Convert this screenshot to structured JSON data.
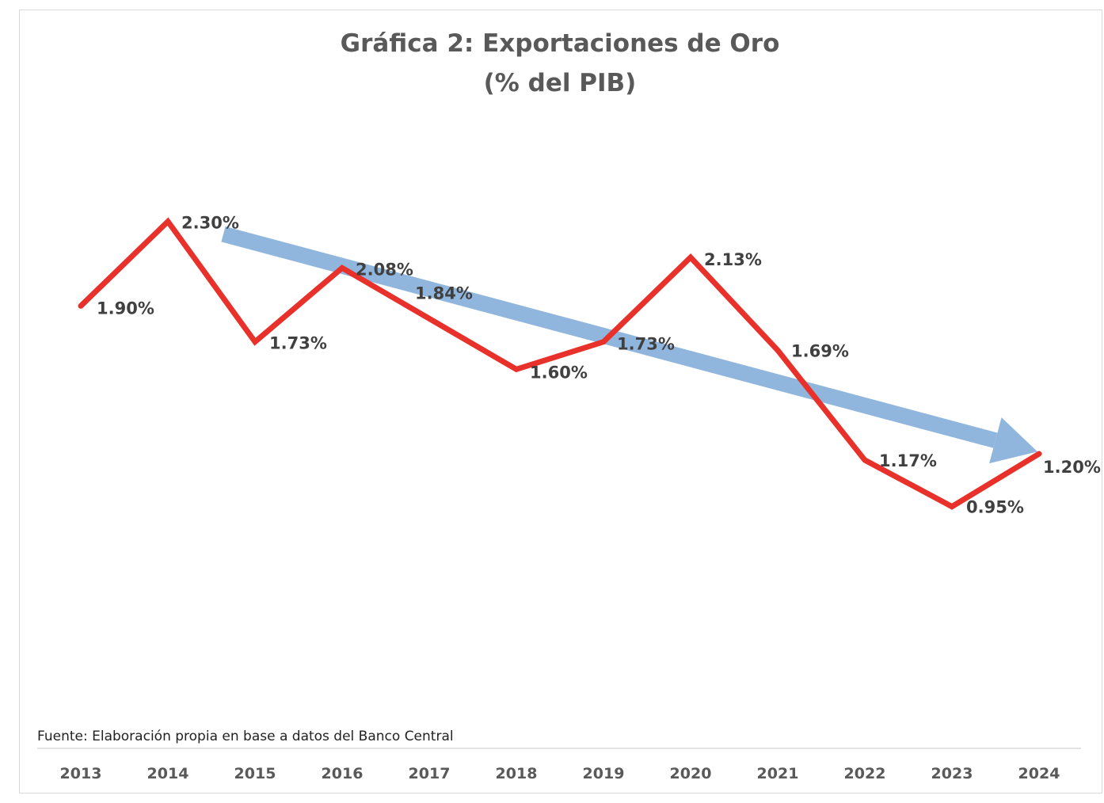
{
  "chart_data": {
    "type": "line",
    "title": "Gráfica 2: Exportaciones de Oro",
    "subtitle": "(% del PIB)",
    "categories": [
      "2013",
      "2014",
      "2015",
      "2016",
      "2017",
      "2018",
      "2019",
      "2020",
      "2021",
      "2022",
      "2023",
      "2024"
    ],
    "series": [
      {
        "name": "Exportaciones de Oro (% del PIB)",
        "values": [
          1.9,
          2.3,
          1.73,
          2.08,
          1.84,
          1.6,
          1.73,
          2.13,
          1.69,
          1.17,
          0.95,
          1.2
        ],
        "labels": [
          "1.90%",
          "2.30%",
          "1.73%",
          "2.08%",
          "1.84%",
          "1.60%",
          "1.73%",
          "2.13%",
          "1.69%",
          "1.17%",
          "0.95%",
          "1.20%"
        ],
        "color": "#e8312a"
      }
    ],
    "trend_arrow": {
      "from_category": "2014",
      "from_value": 2.24,
      "to_category": "2024",
      "to_value": 1.21,
      "color": "#7ea9d8"
    },
    "ylim": [
      0.0,
      2.7
    ],
    "xlabel": "",
    "ylabel": "",
    "grid": false,
    "source": "Fuente: Elaboración propia en base a datos del Banco Central"
  }
}
